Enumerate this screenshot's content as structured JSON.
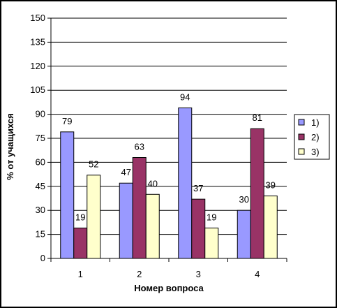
{
  "chart_data": {
    "type": "bar",
    "categories": [
      "1",
      "2",
      "3",
      "4"
    ],
    "series": [
      {
        "name": "1)",
        "values": [
          79,
          47,
          94,
          30
        ],
        "color": "#9999ff"
      },
      {
        "name": "2)",
        "values": [
          19,
          63,
          37,
          81
        ],
        "color": "#993366"
      },
      {
        "name": "3)",
        "values": [
          52,
          40,
          19,
          39
        ],
        "color": "#ffffcc"
      }
    ],
    "xlabel": "Номер вопроса",
    "ylabel": "% от учащихся",
    "ylim": [
      0,
      150
    ],
    "yticks": [
      0,
      15,
      30,
      45,
      60,
      75,
      90,
      105,
      120,
      135,
      150
    ],
    "grid": true,
    "legend": "right"
  }
}
